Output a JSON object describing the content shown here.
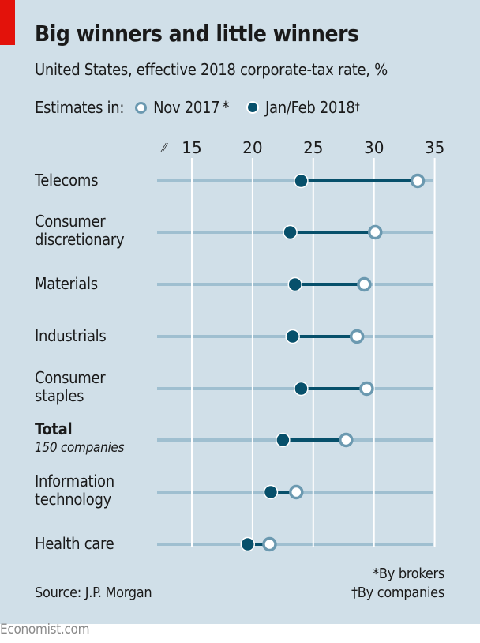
{
  "header": {
    "title": "Big winners and little winners",
    "subtitle": "United States, effective 2018 corporate-tax rate, %",
    "legend_prefix": "Estimates in:",
    "legend": [
      {
        "label": "Nov 2017",
        "mark": "*",
        "style": "open-circle"
      },
      {
        "label": "Jan/Feb 2018",
        "mark": "†",
        "style": "filled-circle"
      }
    ]
  },
  "colors": {
    "background": "#d0dfe8",
    "accent_red": "#e3120b",
    "series_jan": "#07506b",
    "series_nov": "#6b99b0",
    "row_line": "#9fbfd0",
    "grid": "#ffffff"
  },
  "chart_data": {
    "type": "dumbbell",
    "title": "Big winners and little winners",
    "subtitle": "United States, effective 2018 corporate-tax rate, %",
    "xlabel": "",
    "ylabel": "",
    "xlim": [
      12,
      36
    ],
    "xticks": [
      15,
      20,
      25,
      30,
      35
    ],
    "axis_break": true,
    "grid": true,
    "legend_position": "top",
    "categories": [
      {
        "label": "Telecoms",
        "sub": ""
      },
      {
        "label": "Consumer\ndiscretionary",
        "sub": ""
      },
      {
        "label": "Materials",
        "sub": ""
      },
      {
        "label": "Industrials",
        "sub": ""
      },
      {
        "label": "Consumer\nstaples",
        "sub": ""
      },
      {
        "label": "Total",
        "sub": "150 companies",
        "bold": true
      },
      {
        "label": "Information\ntechnology",
        "sub": ""
      },
      {
        "label": "Health care",
        "sub": ""
      }
    ],
    "series": [
      {
        "name": "Nov 2017*",
        "values": [
          33.6,
          30.1,
          29.2,
          28.6,
          29.4,
          27.7,
          23.6,
          21.4
        ]
      },
      {
        "name": "Jan/Feb 2018†",
        "values": [
          24.0,
          23.1,
          23.5,
          23.3,
          24.0,
          22.5,
          21.5,
          19.6
        ]
      }
    ]
  },
  "footer": {
    "source": "Source: J.P. Morgan",
    "notes": [
      "*By brokers",
      "†By companies"
    ],
    "brand": "Economist.com"
  }
}
